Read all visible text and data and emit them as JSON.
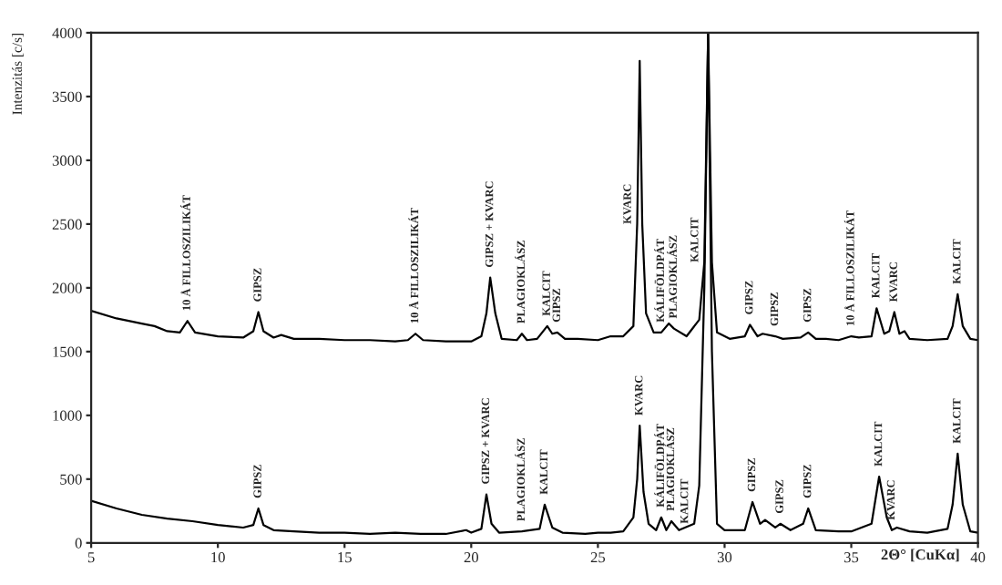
{
  "chart_data": {
    "type": "line",
    "xlabel": "2Θ° [CuKα]",
    "ylabel": "Intenzitás [c/s]",
    "xlim": [
      5,
      40
    ],
    "xticks": [
      5,
      10,
      15,
      20,
      25,
      30,
      35,
      40
    ],
    "ylim": [
      0,
      4000
    ],
    "yticks": [
      0,
      500,
      1000,
      1500,
      2000,
      2500,
      3000,
      3500,
      4000
    ],
    "grid": false,
    "legend": false,
    "series": [
      {
        "color": "#000000",
        "x": [
          5,
          6,
          7,
          7.5,
          8,
          8.5,
          8.8,
          9.1,
          10,
          11,
          11.4,
          11.6,
          11.8,
          12.2,
          12.5,
          13,
          14,
          15,
          16,
          17,
          17.5,
          17.8,
          18.1,
          19,
          20,
          20.4,
          20.6,
          20.75,
          20.95,
          21.2,
          21.8,
          22,
          22.2,
          22.6,
          23,
          23.2,
          23.4,
          23.7,
          24.2,
          25,
          25.5,
          26,
          26.4,
          26.55,
          26.65,
          26.75,
          26.9,
          27.2,
          27.5,
          27.8,
          28.0,
          28.5,
          29.0,
          29.2,
          29.35,
          29.5,
          29.7,
          30.2,
          30.8,
          31,
          31.3,
          31.5,
          32,
          32.3,
          33,
          33.3,
          33.6,
          34,
          34.5,
          35,
          35.3,
          35.8,
          36,
          36.3,
          36.5,
          36.7,
          36.9,
          37.1,
          37.3,
          38,
          38.8,
          39.0,
          39.2,
          39.4,
          39.7,
          40
        ],
        "values": [
          1820,
          1760,
          1720,
          1700,
          1660,
          1650,
          1740,
          1650,
          1620,
          1610,
          1660,
          1810,
          1660,
          1610,
          1630,
          1600,
          1600,
          1590,
          1590,
          1580,
          1590,
          1640,
          1590,
          1580,
          1580,
          1620,
          1800,
          2080,
          1800,
          1600,
          1590,
          1640,
          1590,
          1600,
          1700,
          1640,
          1650,
          1600,
          1600,
          1590,
          1620,
          1620,
          1700,
          2500,
          3780,
          2500,
          1800,
          1650,
          1650,
          1720,
          1680,
          1620,
          1750,
          2200,
          4000,
          2200,
          1650,
          1600,
          1620,
          1710,
          1620,
          1640,
          1620,
          1600,
          1610,
          1650,
          1600,
          1600,
          1590,
          1620,
          1610,
          1620,
          1840,
          1640,
          1660,
          1810,
          1640,
          1660,
          1600,
          1590,
          1600,
          1700,
          1950,
          1700,
          1600,
          1590
        ]
      },
      {
        "color": "#000000",
        "x": [
          5,
          6,
          7,
          8,
          9,
          10,
          11,
          11.4,
          11.6,
          11.8,
          12.2,
          13,
          14,
          15,
          16,
          17,
          18,
          19,
          19.8,
          20,
          20.4,
          20.6,
          20.8,
          21.1,
          22,
          22.7,
          22.9,
          23.2,
          23.6,
          24.5,
          25,
          25.5,
          26,
          26.4,
          26.55,
          26.65,
          26.8,
          27.0,
          27.3,
          27.5,
          27.7,
          27.9,
          28.2,
          28.8,
          29.0,
          29.2,
          29.35,
          29.5,
          29.7,
          30,
          30.8,
          31.1,
          31.4,
          31.6,
          32.0,
          32.2,
          32.6,
          33.1,
          33.3,
          33.6,
          34.5,
          35,
          35.8,
          36.1,
          36.4,
          36.6,
          36.8,
          37.3,
          38,
          38.8,
          39.0,
          39.2,
          39.4,
          39.7,
          40
        ],
        "values": [
          330,
          270,
          220,
          190,
          170,
          140,
          120,
          140,
          270,
          140,
          100,
          90,
          80,
          80,
          70,
          80,
          70,
          70,
          100,
          80,
          110,
          380,
          150,
          80,
          90,
          110,
          300,
          120,
          80,
          70,
          80,
          80,
          90,
          200,
          500,
          920,
          400,
          150,
          100,
          200,
          100,
          170,
          100,
          150,
          450,
          2000,
          4000,
          1500,
          150,
          100,
          100,
          320,
          150,
          180,
          120,
          150,
          100,
          150,
          270,
          100,
          90,
          90,
          150,
          520,
          200,
          100,
          120,
          90,
          80,
          110,
          300,
          700,
          300,
          90,
          80
        ]
      }
    ],
    "annotations": [
      {
        "text": "10 Å FILLOSZILIKÁT",
        "x": 8.8,
        "y": 1740
      },
      {
        "text": "GIPSZ",
        "x": 11.6,
        "y": 1810
      },
      {
        "text": "10 Å FILLOSZILIKÁT",
        "x": 17.8,
        "y": 1640
      },
      {
        "text": "GIPSZ + KVARC",
        "x": 20.75,
        "y": 2080
      },
      {
        "text": "PLAGIOKLÁSZ",
        "x": 22,
        "y": 1640
      },
      {
        "text": "KALCIT",
        "x": 23,
        "y": 1700
      },
      {
        "text": "GIPSZ",
        "x": 23.4,
        "y": 1650
      },
      {
        "text": "KVARC",
        "x": 26.55,
        "y": 2500
      },
      {
        "text": "KÁLIFÖLDPÁT",
        "x": 27.5,
        "y": 1650
      },
      {
        "text": "PLAGIOKLÁSZ",
        "x": 28.0,
        "y": 1680
      },
      {
        "text": "KALCIT",
        "x": 29.2,
        "y": 2200
      },
      {
        "text": "GIPSZ",
        "x": 31,
        "y": 1710
      },
      {
        "text": "GIPSZ",
        "x": 32,
        "y": 1620
      },
      {
        "text": "GIPSZ",
        "x": 33.3,
        "y": 1650
      },
      {
        "text": "10 Å FILLOSZILIKÁT",
        "x": 35,
        "y": 1620
      },
      {
        "text": "KALCIT",
        "x": 36,
        "y": 1840
      },
      {
        "text": "KVARC",
        "x": 36.7,
        "y": 1810
      },
      {
        "text": "KALCIT",
        "x": 39.2,
        "y": 1950
      },
      {
        "text": "GIPSZ",
        "x": 11.6,
        "y": 270
      },
      {
        "text": "GIPSZ + KVARC",
        "x": 20.6,
        "y": 380
      },
      {
        "text": "PLAGIOKLÁSZ",
        "x": 22,
        "y": 90
      },
      {
        "text": "KALCIT",
        "x": 22.9,
        "y": 300
      },
      {
        "text": "KVARC",
        "x": 26.65,
        "y": 920
      },
      {
        "text": "KÁLIFÖLDPÁT",
        "x": 27.5,
        "y": 200
      },
      {
        "text": "PLAGIOKLÁSZ",
        "x": 27.9,
        "y": 170
      },
      {
        "text": "KALCIT",
        "x": 28.8,
        "y": 150
      },
      {
        "text": "GIPSZ",
        "x": 31.1,
        "y": 320
      },
      {
        "text": "GIPSZ",
        "x": 32.2,
        "y": 150
      },
      {
        "text": "GIPSZ",
        "x": 33.3,
        "y": 270
      },
      {
        "text": "KALCIT",
        "x": 36.1,
        "y": 520
      },
      {
        "text": "KVARC",
        "x": 36.6,
        "y": 100
      },
      {
        "text": "KALCIT",
        "x": 39.2,
        "y": 700
      }
    ]
  }
}
